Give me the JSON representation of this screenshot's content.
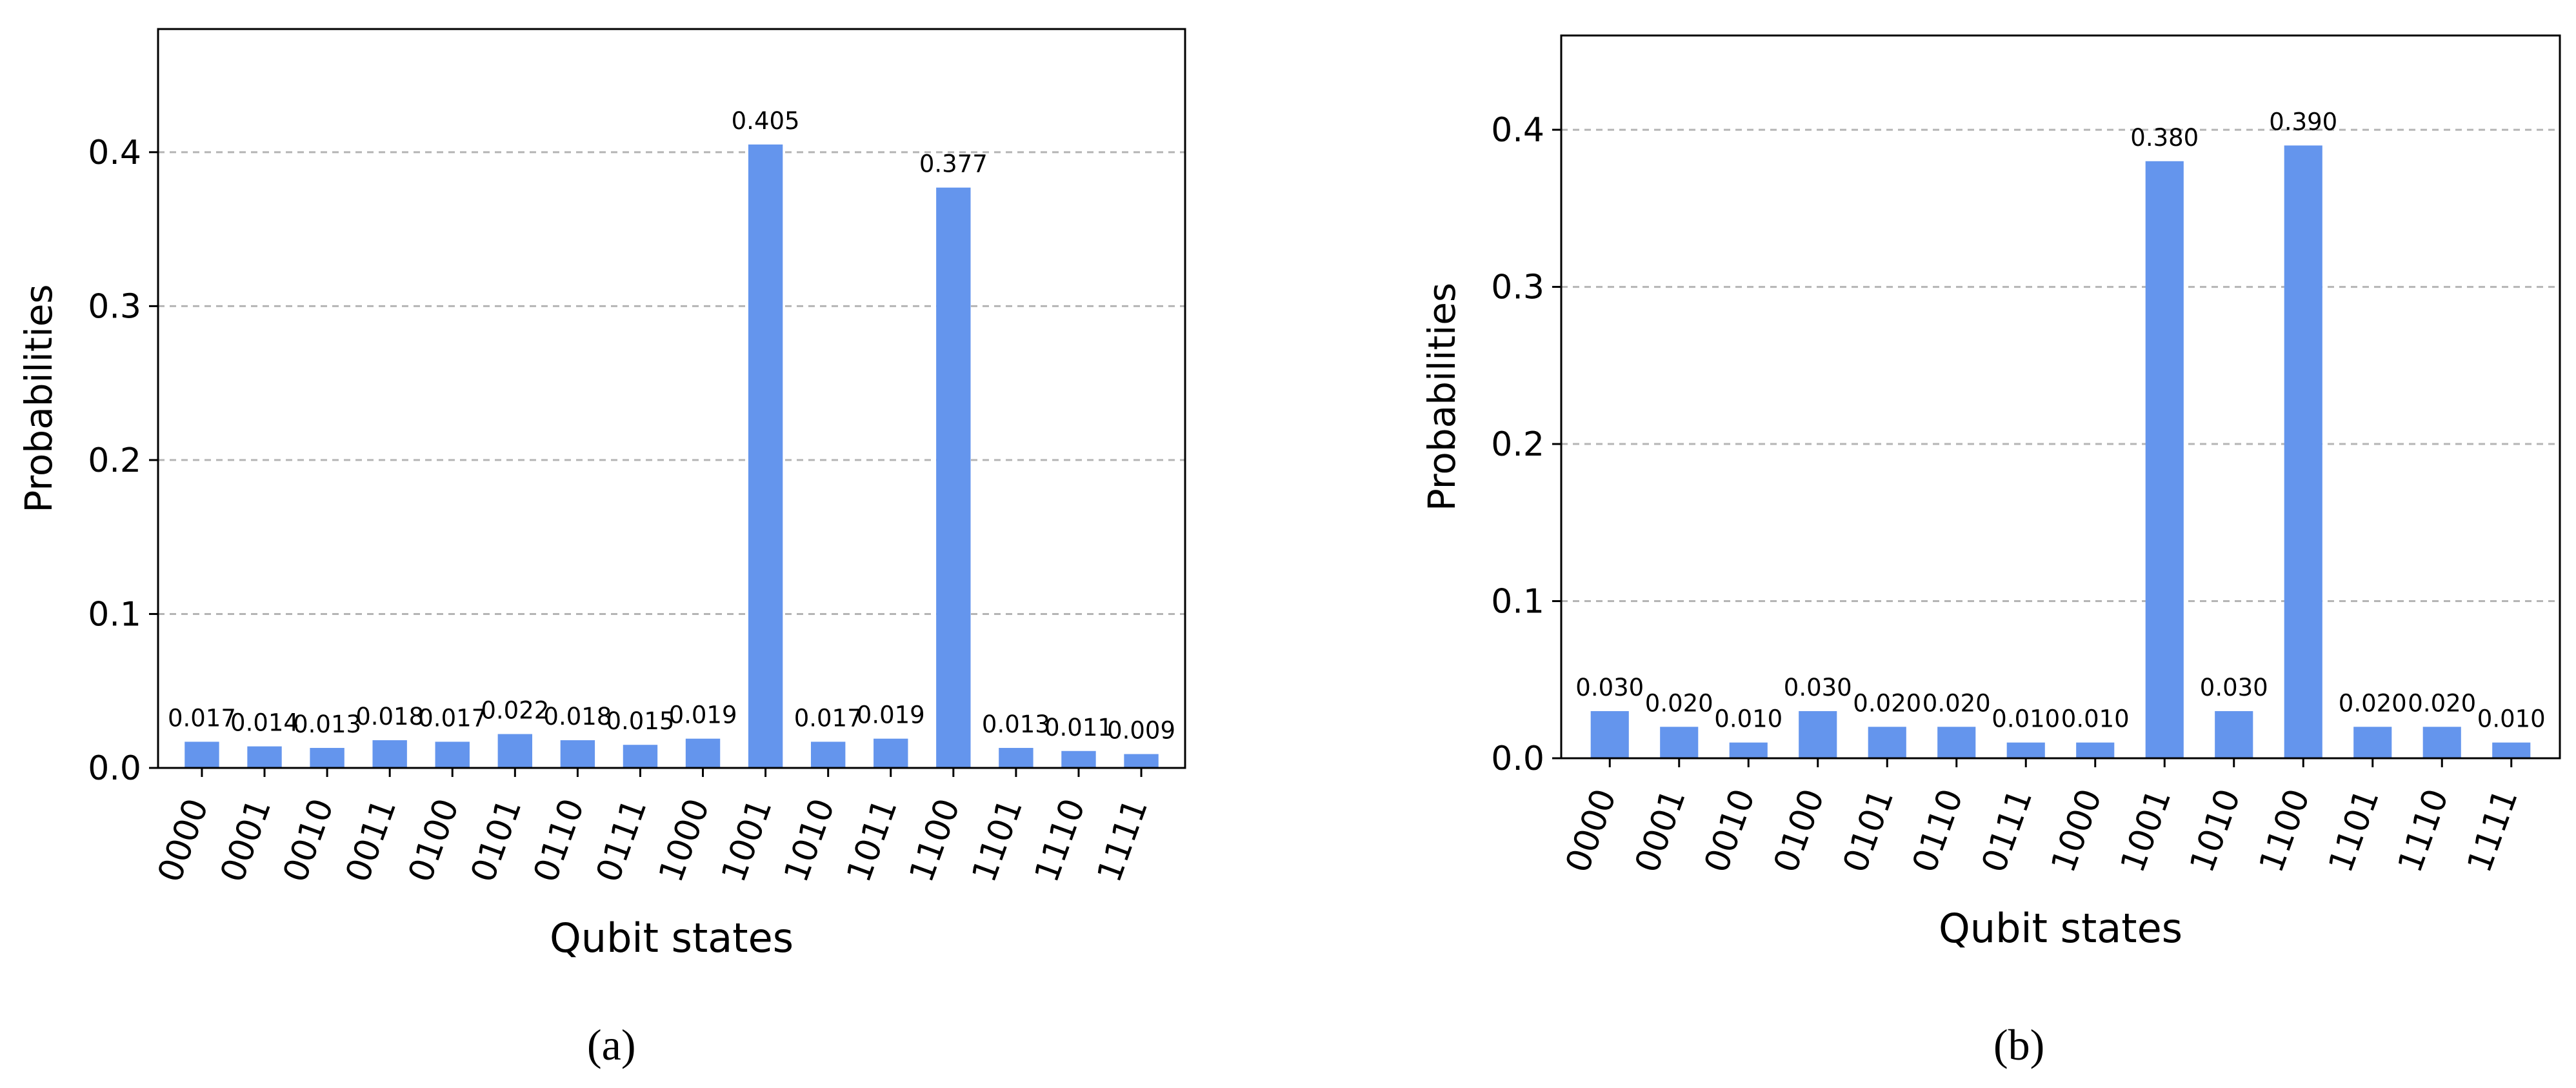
{
  "chart_data": [
    {
      "type": "bar",
      "panel_label": "(a)",
      "xlabel": "Qubit states",
      "ylabel": "Probabilities",
      "ylim": [
        0,
        0.48
      ],
      "yticks": [
        "0.0",
        "0.1",
        "0.2",
        "0.3",
        "0.4"
      ],
      "grid": "horizontal dashed",
      "bar_color": "#6495ed",
      "categories": [
        "0000",
        "0001",
        "0010",
        "0011",
        "0100",
        "0101",
        "0110",
        "0111",
        "1000",
        "1001",
        "1010",
        "1011",
        "1100",
        "1101",
        "1110",
        "1111"
      ],
      "values": [
        0.017,
        0.014,
        0.013,
        0.018,
        0.017,
        0.022,
        0.018,
        0.015,
        0.019,
        0.405,
        0.017,
        0.019,
        0.377,
        0.013,
        0.011,
        0.009
      ],
      "value_labels": [
        "0.017",
        "0.014",
        "0.013",
        "0.018",
        "0.017",
        "0.022",
        "0.018",
        "0.015",
        "0.019",
        "0.405",
        "0.017",
        "0.019",
        "0.377",
        "0.013",
        "0.011",
        "0.009"
      ]
    },
    {
      "type": "bar",
      "panel_label": "(b)",
      "xlabel": "Qubit states",
      "ylabel": "Probabilities",
      "ylim": [
        0,
        0.46
      ],
      "yticks": [
        "0.0",
        "0.1",
        "0.2",
        "0.3",
        "0.4"
      ],
      "grid": "horizontal dashed",
      "bar_color": "#6495ed",
      "categories": [
        "0000",
        "0001",
        "0010",
        "0100",
        "0101",
        "0110",
        "0111",
        "1000",
        "1001",
        "1010",
        "1100",
        "1101",
        "1110",
        "1111"
      ],
      "values": [
        0.03,
        0.02,
        0.01,
        0.03,
        0.02,
        0.02,
        0.01,
        0.01,
        0.38,
        0.03,
        0.39,
        0.02,
        0.02,
        0.01
      ],
      "value_labels": [
        "0.030",
        "0.020",
        "0.010",
        "0.030",
        "0.020",
        "0.020",
        "0.010",
        "0.010",
        "0.380",
        "0.030",
        "0.390",
        "0.020",
        "0.020",
        "0.010"
      ]
    }
  ]
}
